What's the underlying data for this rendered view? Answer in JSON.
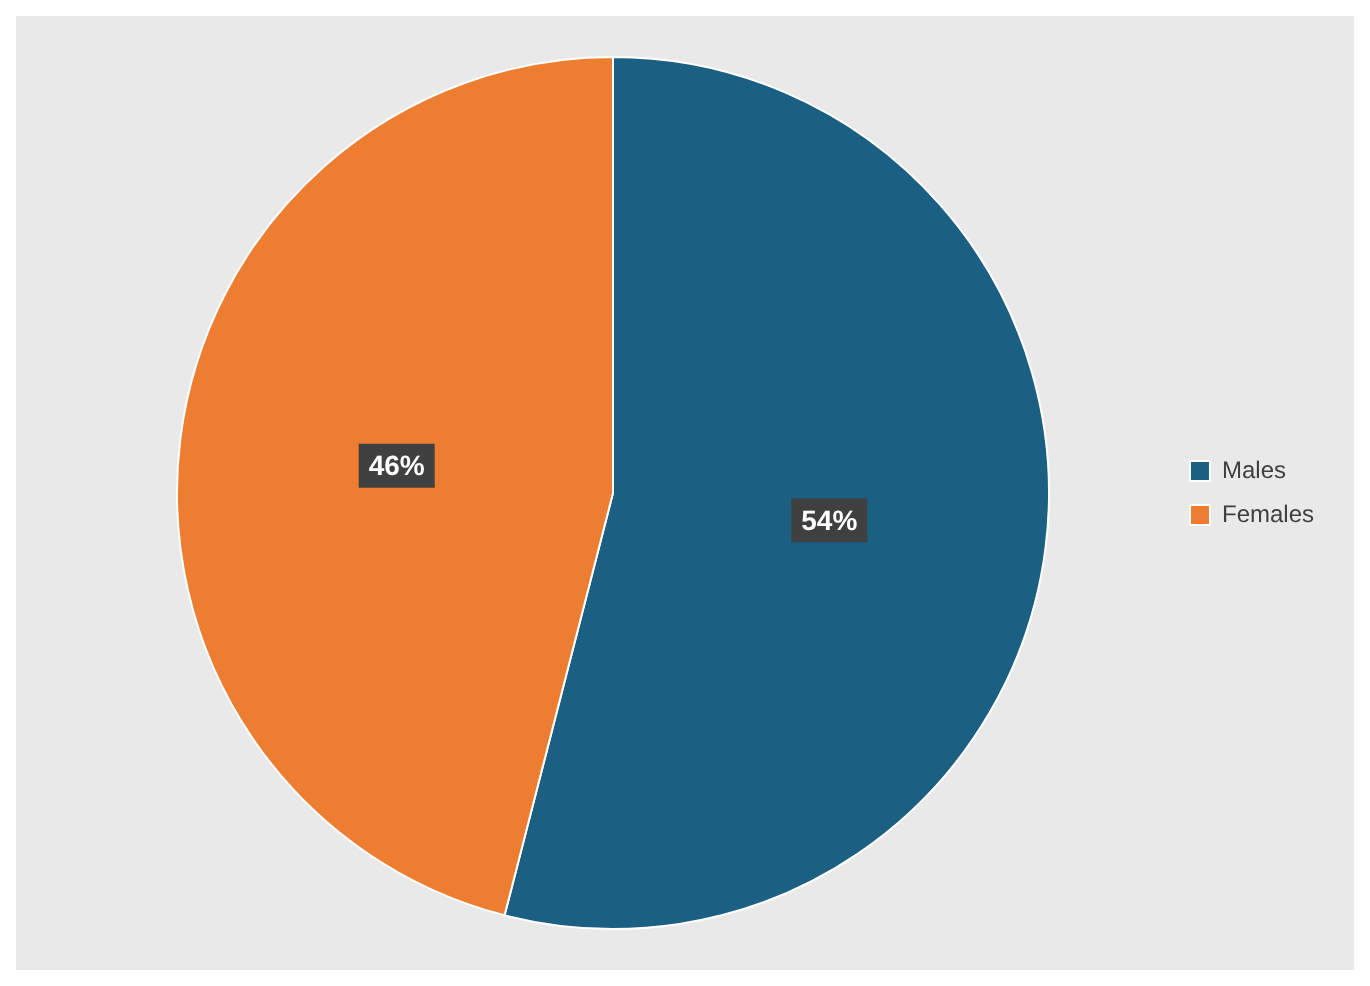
{
  "chart_data": {
    "type": "pie",
    "categories": [
      "Males",
      "Females"
    ],
    "values": [
      54,
      46
    ],
    "colors": [
      "#1b5f82",
      "#ed7d31"
    ],
    "value_labels": [
      "54%",
      "46%"
    ],
    "legend": "right"
  }
}
